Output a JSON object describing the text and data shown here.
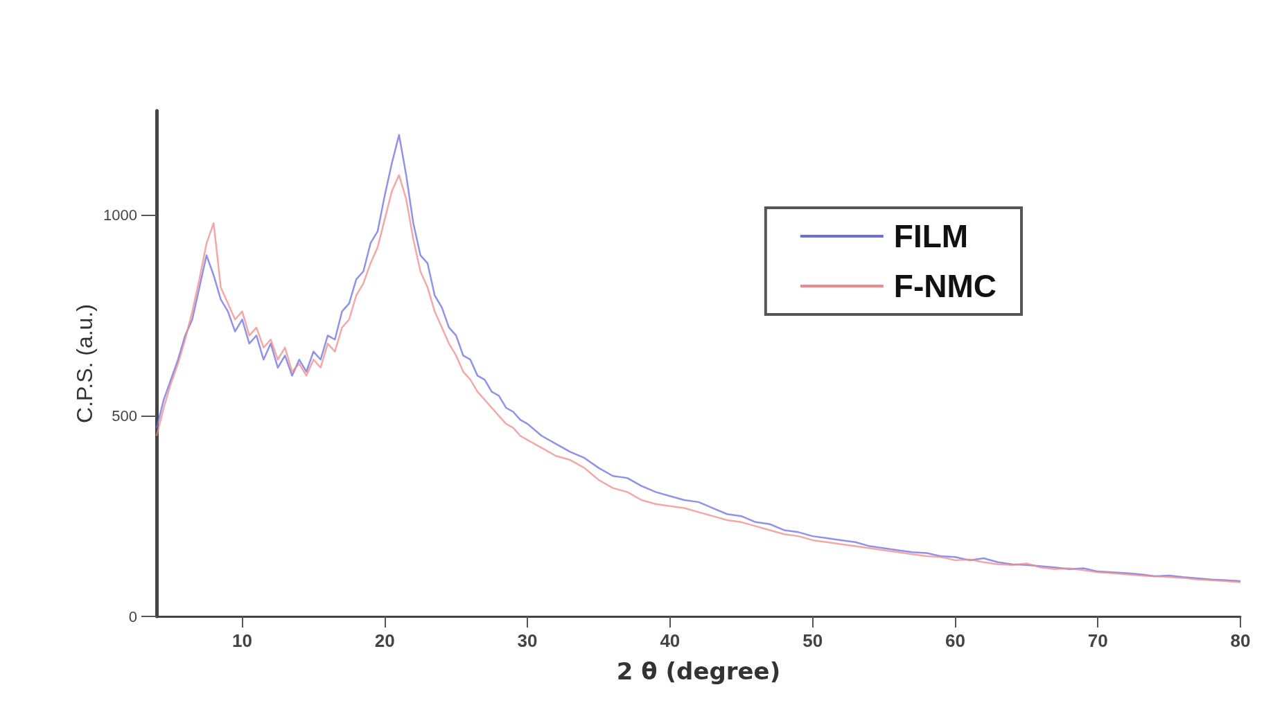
{
  "chart_data": {
    "type": "line",
    "xlabel": "2 θ (degree)",
    "ylabel": "C.P.S. (a.u.)",
    "x": [
      4,
      4.5,
      5,
      5.5,
      6,
      6.5,
      7,
      7.5,
      8,
      8.5,
      9,
      9.5,
      10,
      10.5,
      11,
      11.5,
      12,
      12.5,
      13,
      13.5,
      14,
      14.5,
      15,
      15.5,
      16,
      16.5,
      17,
      17.5,
      18,
      18.5,
      19,
      19.5,
      20,
      20.5,
      21,
      21.5,
      22,
      22.5,
      23,
      23.5,
      24,
      24.5,
      25,
      25.5,
      26,
      26.5,
      27,
      27.5,
      28,
      28.5,
      29,
      29.5,
      30,
      31,
      32,
      33,
      34,
      35,
      36,
      37,
      38,
      39,
      40,
      41,
      42,
      43,
      44,
      45,
      46,
      47,
      48,
      49,
      50,
      51,
      52,
      53,
      54,
      55,
      56,
      57,
      58,
      59,
      60,
      61,
      62,
      63,
      64,
      65,
      66,
      67,
      68,
      69,
      70,
      71,
      72,
      73,
      74,
      75,
      76,
      77,
      78,
      79,
      80
    ],
    "series": [
      {
        "name": "FILM",
        "color": "#6a6ee0",
        "values": [
          470,
          540,
          590,
          640,
          700,
          740,
          820,
          900,
          850,
          790,
          760,
          710,
          740,
          680,
          700,
          640,
          680,
          620,
          650,
          600,
          640,
          610,
          660,
          640,
          700,
          690,
          760,
          780,
          840,
          860,
          930,
          960,
          1050,
          1130,
          1200,
          1100,
          980,
          900,
          880,
          800,
          770,
          720,
          700,
          650,
          640,
          600,
          590,
          560,
          550,
          520,
          510,
          490,
          480,
          450,
          430,
          410,
          395,
          370,
          350,
          345,
          325,
          310,
          300,
          290,
          285,
          270,
          255,
          250,
          235,
          230,
          215,
          210,
          200,
          195,
          190,
          185,
          175,
          170,
          165,
          160,
          158,
          150,
          148,
          140,
          145,
          135,
          130,
          128,
          125,
          122,
          118,
          120,
          112,
          110,
          108,
          105,
          100,
          102,
          98,
          95,
          92,
          90,
          88
        ]
      },
      {
        "name": "F-NMC",
        "color": "#f08a8a",
        "values": [
          450,
          520,
          580,
          630,
          690,
          760,
          840,
          930,
          980,
          820,
          780,
          740,
          760,
          700,
          720,
          670,
          690,
          640,
          670,
          610,
          630,
          600,
          640,
          620,
          680,
          660,
          720,
          740,
          800,
          830,
          880,
          920,
          990,
          1060,
          1100,
          1040,
          940,
          860,
          820,
          760,
          720,
          680,
          650,
          610,
          590,
          560,
          540,
          520,
          500,
          480,
          470,
          450,
          440,
          420,
          400,
          390,
          370,
          340,
          320,
          310,
          290,
          280,
          275,
          270,
          260,
          250,
          240,
          235,
          225,
          215,
          205,
          200,
          190,
          185,
          180,
          175,
          170,
          165,
          160,
          155,
          150,
          148,
          140,
          142,
          135,
          130,
          128,
          132,
          122,
          118,
          120,
          115,
          110,
          108,
          105,
          102,
          100,
          98,
          96,
          92,
          90,
          88,
          85
        ]
      }
    ],
    "xlim": [
      4,
      80
    ],
    "xticks": [
      10,
      20,
      30,
      40,
      50,
      60,
      70,
      80
    ],
    "ylim": [
      0,
      1260
    ],
    "yticks": [
      0,
      500,
      1000
    ],
    "legend": "top right",
    "grid": false,
    "marker": "none",
    "line_style": "solid"
  }
}
